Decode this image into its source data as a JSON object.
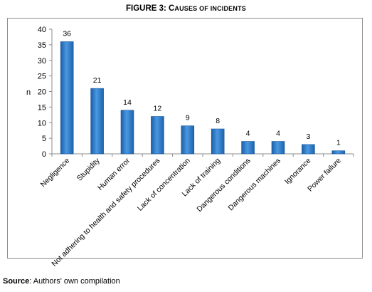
{
  "figure": {
    "title_main": "FIGURE 3: C",
    "title_sc1": "AUSES OF ",
    "title_sc2": "INCIDENTS"
  },
  "source": {
    "label": "Source",
    "text": ": Authors' own compilation"
  },
  "chart_data": {
    "type": "bar",
    "title": "FIGURE 3: Causes of incidents",
    "xlabel": "",
    "ylabel": "n",
    "ylim": [
      0,
      40
    ],
    "yticks": [
      0,
      5,
      10,
      15,
      20,
      25,
      30,
      35,
      40
    ],
    "grid": false,
    "legend": "none",
    "bar_color": "#2b78c9",
    "categories": [
      "Negligence",
      "Stupidity",
      "Human error",
      "Not adhering to health and safety procedures",
      "Lack of concentration",
      "Lack of training",
      "Dangerous conditions",
      "Dangerous machines",
      "Ignorance",
      "Power failure"
    ],
    "values": [
      36,
      21,
      14,
      12,
      9,
      8,
      4,
      4,
      3,
      1
    ],
    "data_labels": [
      "36",
      "21",
      "14",
      "12",
      "9",
      "8",
      "4",
      "4",
      "3",
      "1"
    ]
  }
}
